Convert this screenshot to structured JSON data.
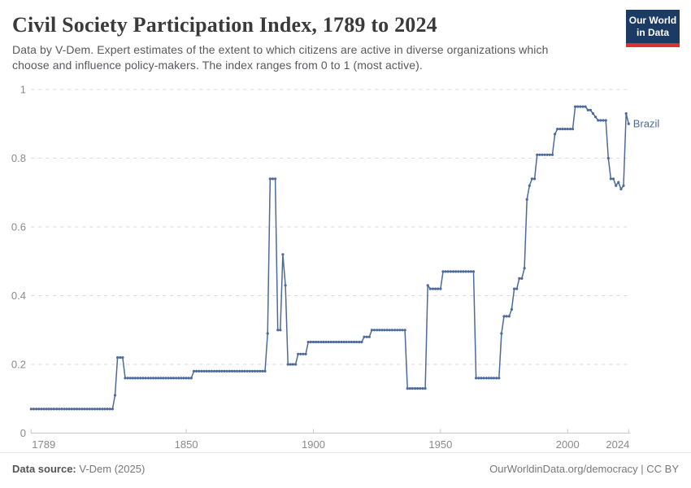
{
  "header": {
    "title": "Civil Society Participation Index, 1789 to 2024",
    "subtitle": "Data by V-Dem. Expert estimates of the extent to which citizens are active in diverse organizations which choose and influence policy-makers. The index ranges from 0 to 1 (most active)."
  },
  "logo": {
    "line1": "Our World",
    "line2": "in Data"
  },
  "footer": {
    "source_label": "Data source:",
    "source_value": "V-Dem (2025)",
    "right": "OurWorldinData.org/democracy | CC BY"
  },
  "colors": {
    "line": "#4c6a9c",
    "entity_label": "#4c6a9c",
    "grid": "#dadada",
    "axis": "#c8c8c8",
    "tick_text": "#8a8a8a",
    "logo_bg": "#1b3a64",
    "logo_bar": "#d7342c"
  },
  "chart_data": {
    "type": "line",
    "title": "Civil Society Participation Index, 1789 to 2024",
    "xlabel": "",
    "ylabel": "",
    "xlim": [
      1789,
      2024
    ],
    "ylim": [
      0,
      1
    ],
    "x_ticks": [
      1789,
      1850,
      1900,
      1950,
      2000,
      2024
    ],
    "y_ticks": [
      0,
      0.2,
      0.4,
      0.6,
      0.8,
      1
    ],
    "grid": true,
    "markers": true,
    "legend_position": "end-of-line-label",
    "series": [
      {
        "name": "Brazil",
        "color": "#4c6a9c",
        "segments_format": "[startYear, endYear, value] with one data point per year",
        "segments": [
          [
            1789,
            1821,
            0.07
          ],
          [
            1822,
            1822,
            0.11
          ],
          [
            1823,
            1825,
            0.22
          ],
          [
            1826,
            1852,
            0.16
          ],
          [
            1853,
            1881,
            0.18
          ],
          [
            1882,
            1882,
            0.29
          ],
          [
            1883,
            1885,
            0.74
          ],
          [
            1886,
            1887,
            0.3
          ],
          [
            1888,
            1888,
            0.52
          ],
          [
            1889,
            1889,
            0.43
          ],
          [
            1890,
            1893,
            0.2
          ],
          [
            1894,
            1897,
            0.23
          ],
          [
            1898,
            1919,
            0.265
          ],
          [
            1920,
            1922,
            0.28
          ],
          [
            1923,
            1936,
            0.3
          ],
          [
            1937,
            1944,
            0.13
          ],
          [
            1945,
            1945,
            0.43
          ],
          [
            1946,
            1950,
            0.42
          ],
          [
            1951,
            1963,
            0.47
          ],
          [
            1964,
            1973,
            0.16
          ],
          [
            1974,
            1974,
            0.29
          ],
          [
            1975,
            1977,
            0.34
          ],
          [
            1978,
            1978,
            0.36
          ],
          [
            1979,
            1980,
            0.42
          ],
          [
            1981,
            1982,
            0.45
          ],
          [
            1983,
            1983,
            0.48
          ],
          [
            1984,
            1984,
            0.68
          ],
          [
            1985,
            1985,
            0.72
          ],
          [
            1986,
            1987,
            0.74
          ],
          [
            1988,
            1994,
            0.81
          ],
          [
            1995,
            1995,
            0.87
          ],
          [
            1996,
            2002,
            0.885
          ],
          [
            2003,
            2007,
            0.95
          ],
          [
            2008,
            2009,
            0.94
          ],
          [
            2010,
            2010,
            0.93
          ],
          [
            2011,
            2011,
            0.92
          ],
          [
            2012,
            2015,
            0.91
          ],
          [
            2016,
            2016,
            0.8
          ],
          [
            2017,
            2018,
            0.74
          ],
          [
            2019,
            2019,
            0.72
          ],
          [
            2020,
            2020,
            0.73
          ],
          [
            2021,
            2021,
            0.71
          ],
          [
            2022,
            2022,
            0.72
          ],
          [
            2023,
            2023,
            0.93
          ],
          [
            2024,
            2024,
            0.9
          ]
        ]
      }
    ]
  }
}
